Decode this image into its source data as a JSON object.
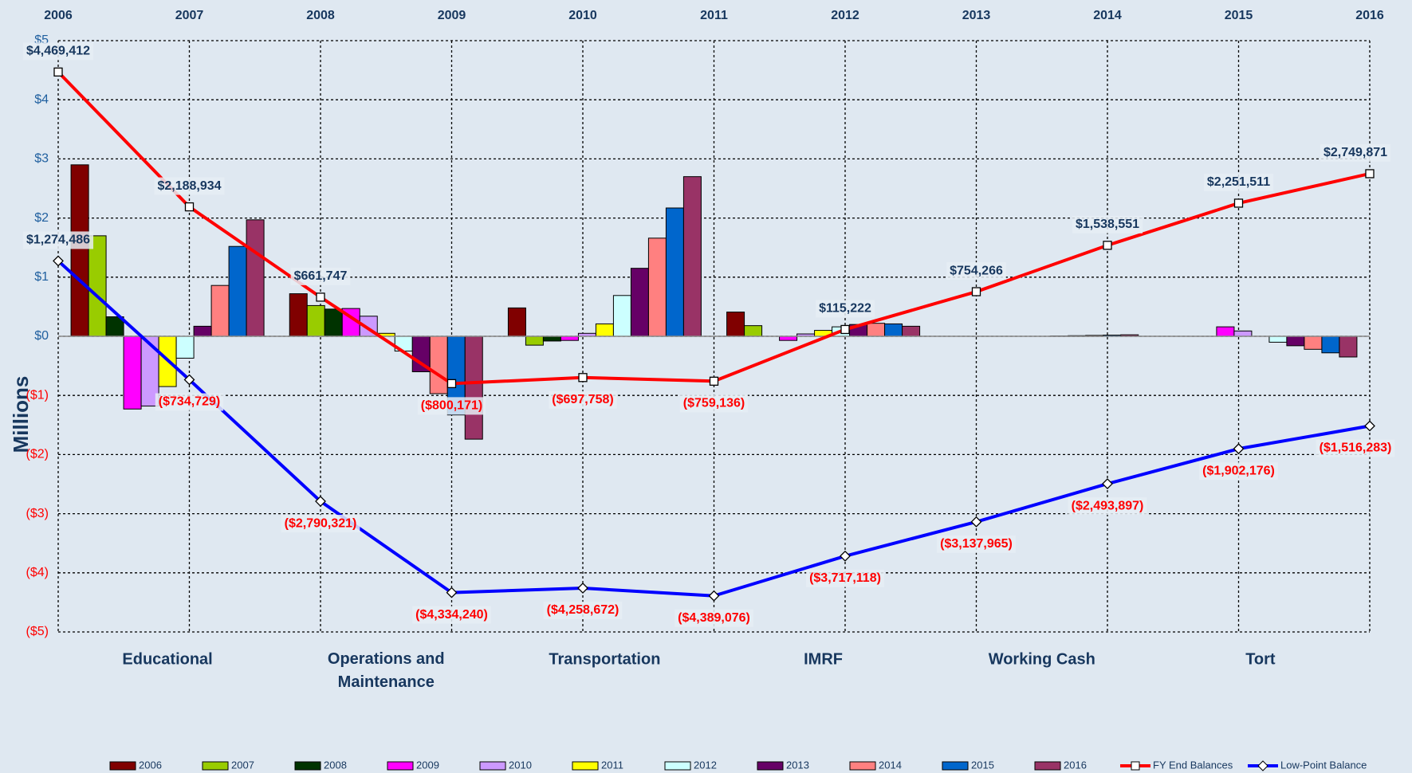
{
  "chart_data": {
    "type": "bar",
    "y_label": "Millions",
    "categories": [
      "Educational",
      "Operations and Maintenance",
      "Transportation",
      "IMRF",
      "Working Cash",
      "Tort"
    ],
    "x": [
      2006,
      2007,
      2008,
      2009,
      2010,
      2011,
      2012,
      2013,
      2014,
      2015,
      2016
    ],
    "ylim": [
      -5,
      5
    ],
    "yticks": [
      {
        "value": -5,
        "label": "($5)"
      },
      {
        "value": -4,
        "label": "($4)"
      },
      {
        "value": -3,
        "label": "($3)"
      },
      {
        "value": -2,
        "label": "($2)"
      },
      {
        "value": -1,
        "label": "($1)"
      },
      {
        "value": 0,
        "label": "$0"
      },
      {
        "value": 1,
        "label": "$1"
      },
      {
        "value": 2,
        "label": "$2"
      },
      {
        "value": 3,
        "label": "$3"
      },
      {
        "value": 4,
        "label": "$4"
      },
      {
        "value": 5,
        "label": "$5"
      }
    ],
    "grid": true,
    "legend": "bottom",
    "series": [
      {
        "name": "2006",
        "color": "#800000",
        "values": [
          2.9,
          0.72,
          0.48,
          0.41,
          0,
          0
        ]
      },
      {
        "name": "2007",
        "color": "#99cc00",
        "values": [
          1.7,
          0.52,
          -0.15,
          0.18,
          0,
          0
        ]
      },
      {
        "name": "2008",
        "color": "#003300",
        "values": [
          0.33,
          0.46,
          -0.08,
          0,
          0,
          0
        ]
      },
      {
        "name": "2009",
        "color": "#ff00ff",
        "values": [
          -1.23,
          0.47,
          -0.07,
          -0.07,
          0,
          0.16
        ]
      },
      {
        "name": "2010",
        "color": "#cc99ff",
        "values": [
          -1.18,
          0.34,
          0.05,
          0.04,
          0,
          0.09
        ]
      },
      {
        "name": "2011",
        "color": "#ffff00",
        "values": [
          -0.85,
          0.05,
          0.21,
          0.1,
          0,
          0
        ]
      },
      {
        "name": "2012",
        "color": "#ccffff",
        "values": [
          -0.37,
          -0.25,
          0.69,
          0.16,
          0.005,
          -0.1
        ]
      },
      {
        "name": "2013",
        "color": "#660066",
        "values": [
          0.17,
          -0.6,
          1.15,
          0.2,
          0.01,
          -0.16
        ]
      },
      {
        "name": "2014",
        "color": "#ff8080",
        "values": [
          0.86,
          -0.97,
          1.66,
          0.22,
          0.015,
          -0.22
        ]
      },
      {
        "name": "2015",
        "color": "#0066cc",
        "values": [
          1.52,
          -1.33,
          2.17,
          0.21,
          0.02,
          -0.28
        ]
      },
      {
        "name": "2016",
        "color": "#993366",
        "values": [
          1.97,
          -1.74,
          2.7,
          0.17,
          0.025,
          -0.35
        ]
      }
    ],
    "line_series": [
      {
        "name": "FY End Balances",
        "color": "#ff0000",
        "marker": "square",
        "values": [
          4.469412,
          2.188934,
          0.661747,
          -0.800171,
          -0.697758,
          -0.759136,
          0.115222,
          0.754266,
          1.538551,
          2.251511,
          2.749871
        ],
        "value_labels": [
          "$4,469,412",
          "$2,188,934",
          "$661,747",
          "($800,171)",
          "($697,758)",
          "($759,136)",
          "$115,222",
          "$754,266",
          "$1,538,551",
          "$2,251,511",
          "$2,749,871"
        ]
      },
      {
        "name": "Low-Point Balance",
        "color": "#0000ff",
        "marker": "diamond",
        "values": [
          1.274486,
          -0.734729,
          -2.790321,
          -4.33424,
          -4.258672,
          -4.389076,
          -3.717118,
          -3.137965,
          -2.493897,
          -1.902176,
          -1.516283
        ],
        "value_labels": [
          "$1,274,486",
          "($734,729)",
          "($2,790,321)",
          "($4,334,240)",
          "($4,258,672)",
          "($4,389,076)",
          "($3,717,118)",
          "($3,137,965)",
          "($2,493,897)",
          "($1,902,176)",
          "($1,516,283)"
        ]
      }
    ]
  }
}
